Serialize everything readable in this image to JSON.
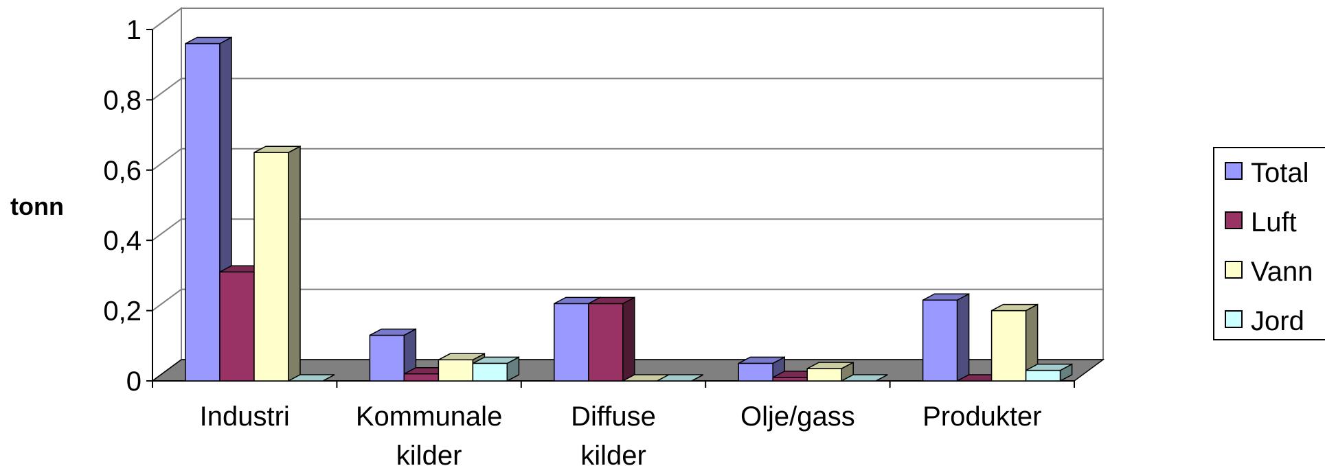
{
  "chart_data": {
    "type": "bar",
    "style": "3d-clustered-column",
    "title": "",
    "xlabel": "",
    "ylabel": "tonn",
    "ylim": [
      0,
      1
    ],
    "yticks": [
      "0",
      "0,2",
      "0,4",
      "0,6",
      "0,8",
      "1"
    ],
    "ytick_values": [
      0,
      0.2,
      0.4,
      0.6,
      0.8,
      1
    ],
    "grid": true,
    "legend_position": "right",
    "categories": [
      [
        "Industri"
      ],
      [
        "Kommunale",
        "kilder"
      ],
      [
        "Diffuse",
        "kilder"
      ],
      [
        "Olje/gass"
      ],
      [
        "Produkter"
      ]
    ],
    "series": [
      {
        "name": "Total",
        "color": "#9999ff",
        "values": [
          0.96,
          0.13,
          0.22,
          0.05,
          0.23
        ]
      },
      {
        "name": "Luft",
        "color": "#993366",
        "values": [
          0.31,
          0.02,
          0.22,
          0.01,
          0.0
        ]
      },
      {
        "name": "Vann",
        "color": "#ffffcc",
        "values": [
          0.65,
          0.06,
          0.0,
          0.035,
          0.2
        ]
      },
      {
        "name": "Jord",
        "color": "#ccffff",
        "values": [
          0.0,
          0.05,
          0.0,
          0.0,
          0.03
        ]
      }
    ]
  }
}
